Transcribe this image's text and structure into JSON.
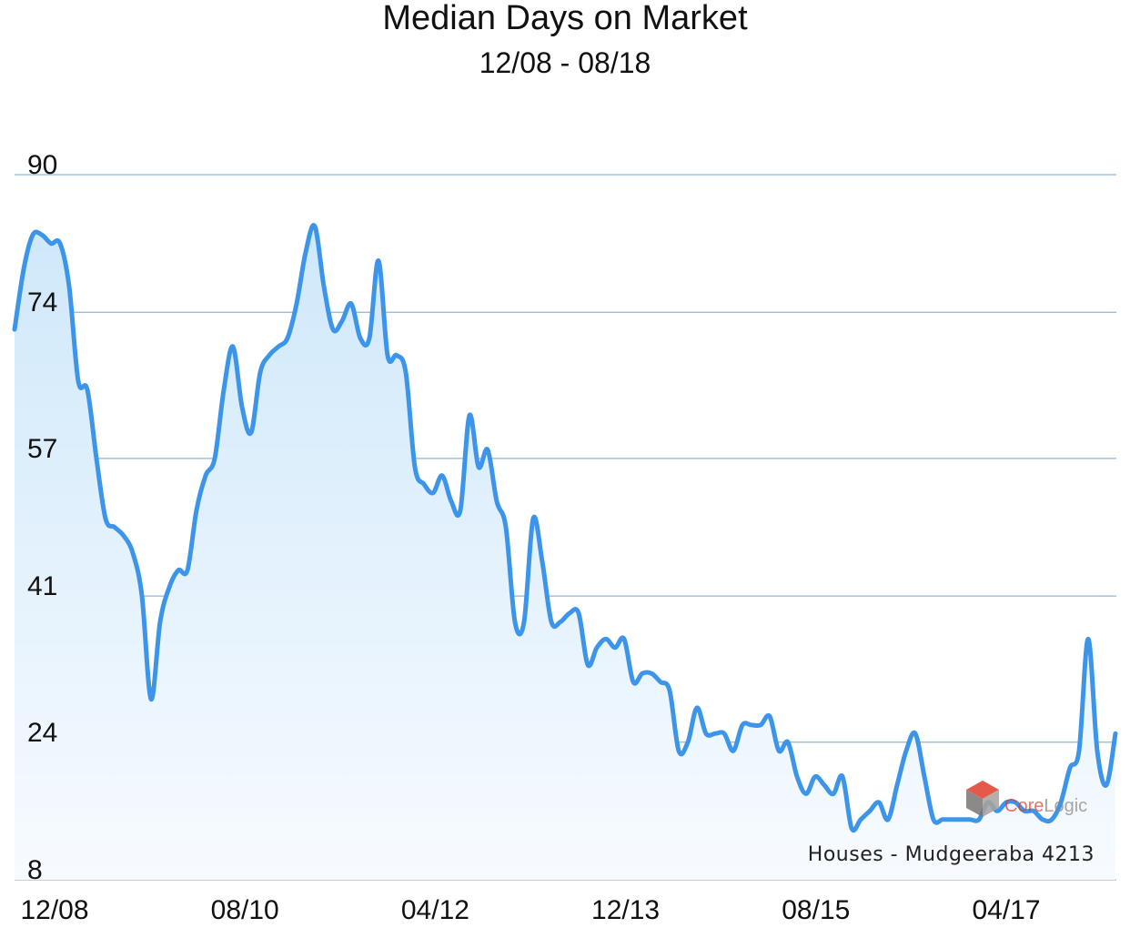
{
  "chart_data": {
    "type": "area",
    "title": "Median Days on Market",
    "subtitle": "12/08 - 08/18",
    "xlabel": "",
    "ylabel": "",
    "x_ticks": [
      "12/08",
      "08/10",
      "04/12",
      "12/13",
      "08/15",
      "04/17"
    ],
    "y_ticks": [
      90,
      74,
      57,
      41,
      24,
      8
    ],
    "ylim": [
      8,
      90
    ],
    "grid": true,
    "series": [
      {
        "values": [
          72,
          79,
          83,
          83,
          82,
          82,
          77,
          66,
          65,
          57,
          50,
          49,
          48,
          46,
          41,
          29,
          38,
          42,
          44,
          44,
          51,
          55,
          57,
          65,
          70,
          63,
          60,
          67,
          69,
          70,
          71,
          75,
          81,
          84,
          77,
          72,
          73,
          75,
          71,
          71,
          80,
          69,
          69,
          67,
          56,
          54,
          53,
          55,
          52,
          51,
          62,
          56,
          58,
          52,
          49,
          38,
          38,
          50,
          45,
          38,
          38,
          39,
          39,
          33,
          35,
          36,
          35,
          36,
          31,
          32,
          32,
          31,
          30,
          23,
          24,
          28,
          25,
          25,
          25,
          23,
          26,
          26,
          26,
          27,
          23,
          24,
          20,
          18,
          20,
          19,
          18,
          20,
          14,
          15,
          16,
          17,
          15,
          19,
          23,
          25,
          20,
          15,
          15,
          15,
          15,
          15,
          15,
          17,
          16,
          17,
          17,
          16,
          16,
          15,
          15,
          17,
          21,
          23,
          36,
          23,
          19,
          25
        ]
      }
    ],
    "line_color": "#3d95ea",
    "fill_color_top": "#cfe8fa",
    "fill_color_bottom": "#f7fbff",
    "grid_color": "#8fb6d6",
    "annotation": "Houses - Mudgeeraba 4213",
    "watermark": "CoreLogic",
    "brand_color": "#e03d2c"
  }
}
